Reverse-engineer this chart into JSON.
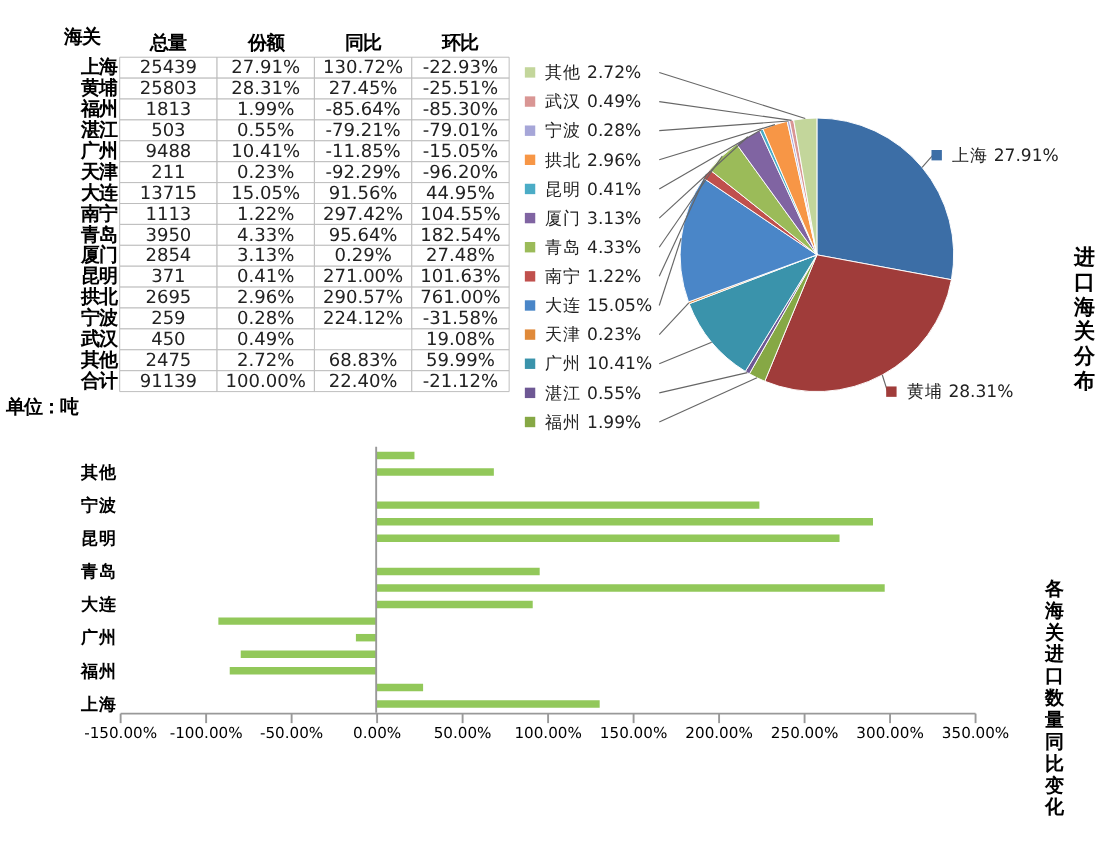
{
  "chart_data": [
    {
      "type": "other",
      "ylabel": "海关",
      "categories": [
        "总量",
        "份额",
        "同比",
        "环比"
      ],
      "y_categories": [
        "上海",
        "黄埔",
        "福州",
        "湛江",
        "广州",
        "天津",
        "大连",
        "南宁",
        "青岛",
        "厦门",
        "昆明",
        "拱北",
        "宁波",
        "武汉",
        "其他",
        "合计"
      ],
      "cell_labels": [
        [
          "25439",
          "27.91%",
          "130.72%",
          "-22.93%"
        ],
        [
          "25803",
          "28.31%",
          "27.45%",
          "-25.51%"
        ],
        [
          "1813",
          "1.99%",
          "-85.64%",
          "-85.30%"
        ],
        [
          "503",
          "0.55%",
          "-79.21%",
          "-79.01%"
        ],
        [
          "9488",
          "10.41%",
          "-11.85%",
          "-15.05%"
        ],
        [
          "211",
          "0.23%",
          "-92.29%",
          "-96.20%"
        ],
        [
          "13715",
          "15.05%",
          "91.56%",
          "44.95%"
        ],
        [
          "1113",
          "1.22%",
          "297.42%",
          "104.55%"
        ],
        [
          "3950",
          "4.33%",
          "95.64%",
          "182.54%"
        ],
        [
          "2854",
          "3.13%",
          "0.29%",
          "27.48%"
        ],
        [
          "371",
          "0.41%",
          "271.00%",
          "101.63%"
        ],
        [
          "2695",
          "2.96%",
          "290.57%",
          "761.00%"
        ],
        [
          "259",
          "0.28%",
          "224.12%",
          "-31.58%"
        ],
        [
          "450",
          "0.49%",
          null,
          "19.08%"
        ],
        [
          "2475",
          "2.72%",
          "68.83%",
          "59.99%"
        ],
        [
          "91139",
          "100.00%",
          "22.40%",
          "-21.12%"
        ]
      ],
      "annotations": [
        "单位：吨"
      ]
    },
    {
      "type": "pie",
      "title": "进口海关分布",
      "categories": [
        "上海",
        "黄埔",
        "福州",
        "湛江",
        "广州",
        "天津",
        "大连",
        "南宁",
        "青岛",
        "厦门",
        "昆明",
        "拱北",
        "宁波",
        "武汉",
        "其他"
      ],
      "values": [
        27.91,
        28.31,
        1.99,
        0.55,
        10.41,
        0.23,
        15.05,
        1.22,
        4.33,
        3.13,
        0.41,
        2.96,
        0.28,
        0.49,
        2.72
      ],
      "value_labels": [
        "27.91%",
        "28.31%",
        "1.99%",
        "0.55%",
        "10.41%",
        "0.23%",
        "15.05%",
        "1.22%",
        "4.33%",
        "3.13%",
        "0.41%",
        "2.96%",
        "0.28%",
        "0.49%",
        "2.72%"
      ],
      "legend": "left",
      "colors": [
        "#3c6ea6",
        "#a03c3a",
        "#86a845",
        "#6e5894",
        "#3a93ab",
        "#e08a3a",
        "#4a86c8",
        "#c0504d",
        "#9bbb59",
        "#8064a2",
        "#4bacc6",
        "#f79646",
        "#a6a6d8",
        "#d99694",
        "#c3d69b"
      ]
    },
    {
      "type": "bar",
      "orientation": "horizontal",
      "title": "各海关进口数量同比变化",
      "categories": [
        null,
        "其他",
        null,
        "宁波",
        null,
        "昆明",
        null,
        "青岛",
        null,
        "大连",
        null,
        "广州",
        null,
        "福州",
        null,
        "上海"
      ],
      "values": [
        22.4,
        68.83,
        null,
        224.12,
        290.57,
        271.0,
        0.29,
        95.64,
        297.42,
        91.56,
        -92.29,
        -11.85,
        -79.21,
        -85.64,
        27.45,
        130.72
      ],
      "color": "#92c85a",
      "xlim": [
        -150,
        350
      ],
      "xticks": [
        {
          "value": -150,
          "label": "-150.00%"
        },
        {
          "value": -100,
          "label": "-100.00%"
        },
        {
          "value": -50,
          "label": "-50.00%"
        },
        {
          "value": 0,
          "label": "0.00%"
        },
        {
          "value": 50,
          "label": "50.00%"
        },
        {
          "value": 100,
          "label": "100.00%"
        },
        {
          "value": 150,
          "label": "150.00%"
        },
        {
          "value": 200,
          "label": "200.00%"
        },
        {
          "value": 250,
          "label": "250.00%"
        },
        {
          "value": 300,
          "label": "300.00%"
        },
        {
          "value": 350,
          "label": "350.00%"
        }
      ],
      "ref_lines": [
        {
          "axis": "x",
          "value": 0,
          "color": "#999999"
        }
      ],
      "grid": false
    }
  ]
}
